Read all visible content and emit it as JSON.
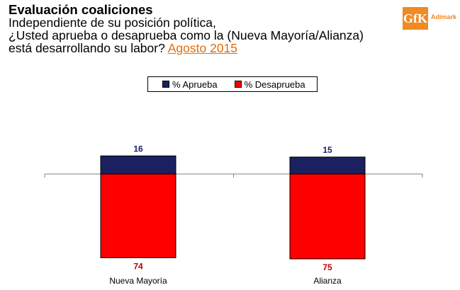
{
  "header": {
    "title": "Evaluación coaliciones",
    "question_line1": "Independiente de su posición política,",
    "question_line2": "¿Usted aprueba o desaprueba como la (Nueva Mayoría/Alianza)",
    "question_line3": "está desarrollando su labor?",
    "period": "Agosto 2015"
  },
  "logo": {
    "mark": "GfK",
    "brand": "Adimark"
  },
  "colors": {
    "aprueba": "#1a2060",
    "desaprueba": "#ff0000",
    "accent": "#e46c0a"
  },
  "chart_data": {
    "type": "bar",
    "stacked": true,
    "categories": [
      "Nueva Mayoría",
      "Alianza"
    ],
    "series": [
      {
        "name": "% Aprueba",
        "values": [
          16,
          15
        ]
      },
      {
        "name": "% Desaprueba",
        "values": [
          74,
          75
        ]
      }
    ],
    "legend_position": "top"
  }
}
